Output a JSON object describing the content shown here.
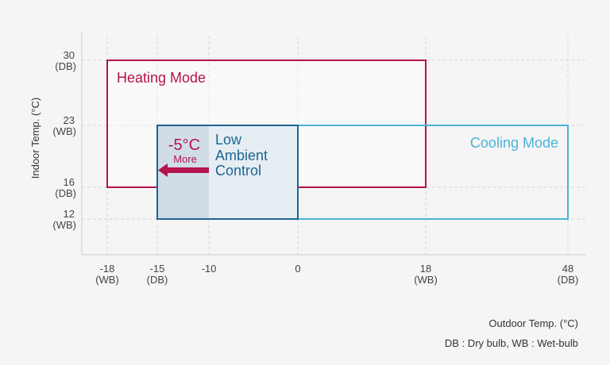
{
  "chart_data": {
    "type": "range-boxes",
    "ylabel": "Indoor Temp. (°C)",
    "xlabel": "Outdoor Temp. (°C)",
    "footnote": "DB : Dry bulb, WB : Wet-bulb",
    "x_ticks": [
      {
        "value": -18,
        "label": "-18",
        "sub": "(WB)"
      },
      {
        "value": -15,
        "label": "-15",
        "sub": "(DB)"
      },
      {
        "value": -10,
        "label": "-10",
        "sub": ""
      },
      {
        "value": 0,
        "label": "0",
        "sub": ""
      },
      {
        "value": 18,
        "label": "18",
        "sub": "(WB)"
      },
      {
        "value": 48,
        "label": "48",
        "sub": "(DB)"
      }
    ],
    "y_ticks": [
      {
        "value": 30,
        "label": "30",
        "sub": "(DB)"
      },
      {
        "value": 23,
        "label": "23",
        "sub": "(WB)"
      },
      {
        "value": 16,
        "label": "16",
        "sub": "(DB)"
      },
      {
        "value": 12,
        "label": "12",
        "sub": "(WB)"
      }
    ],
    "grid": true,
    "regions": [
      {
        "name": "Heating Mode",
        "x": [
          -18,
          18
        ],
        "y": [
          16,
          30
        ],
        "color": "#b5134d"
      },
      {
        "name": "Cooling Mode",
        "x": [
          -15,
          48
        ],
        "y": [
          12,
          23
        ],
        "color": "#4ab3da"
      },
      {
        "name": "Low Ambient Control",
        "x": [
          -15,
          0
        ],
        "y": [
          12,
          23
        ],
        "color": "#1d6592",
        "fill": "#e6eef3",
        "extended_x": [
          -15,
          -10
        ],
        "extended_fill": "#d0dde6"
      }
    ],
    "annotation": {
      "value": "-5°C",
      "sub": "More",
      "color": "#b5134d"
    },
    "low_ambient_lines": [
      "Low",
      "Ambient",
      "Control"
    ]
  }
}
